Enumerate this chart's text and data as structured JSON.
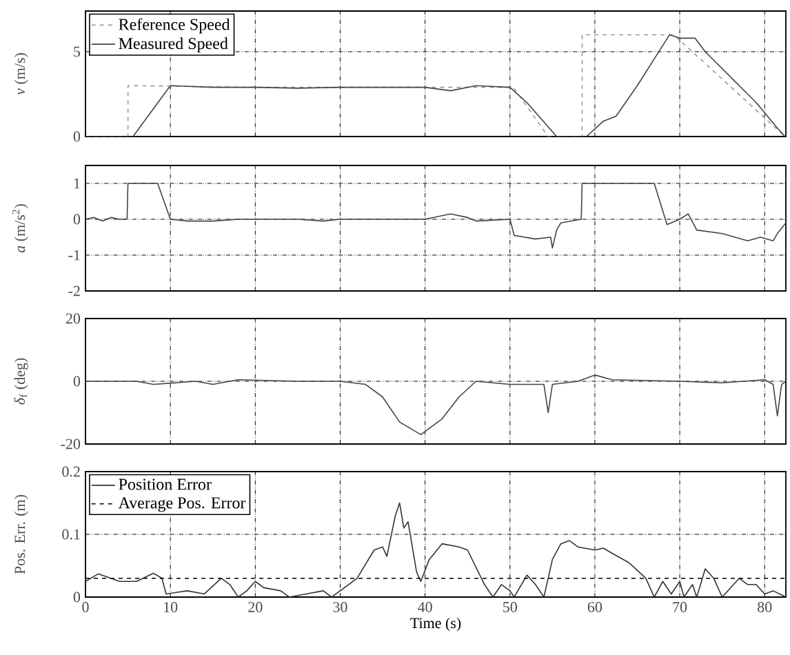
{
  "chart_data": [
    {
      "type": "line",
      "ylabel": "*v* (m/s)",
      "xlim": [
        0,
        82.5
      ],
      "xticks": [
        0,
        10,
        20,
        30,
        40,
        50,
        60,
        70,
        80
      ],
      "ylim": [
        0,
        7.4
      ],
      "yticks": [
        0,
        5
      ],
      "grid": true,
      "legend": "top left",
      "tick_labels": "y",
      "series": [
        {
          "name": "Reference Speed",
          "color": "#999999",
          "line_style": "dashed",
          "x": [
            0,
            5,
            5.01,
            20,
            35,
            50.4,
            54.5,
            58.5,
            58.51,
            69.3,
            82.4
          ],
          "values": [
            0,
            0,
            3,
            2.9,
            2.9,
            2.9,
            0,
            0,
            6,
            6,
            0
          ]
        },
        {
          "name": "Measured Speed",
          "color": "#444444",
          "line_style": "solid",
          "x": [
            0,
            5.6,
            10,
            15,
            20,
            25,
            30,
            35,
            40,
            43,
            46,
            50,
            52,
            55.5,
            59,
            61,
            62.5,
            65,
            68.8,
            70,
            71.8,
            73,
            76,
            79,
            81.5,
            82.4
          ],
          "values": [
            0,
            0,
            3,
            2.9,
            2.9,
            2.85,
            2.9,
            2.9,
            2.9,
            2.7,
            3,
            2.9,
            2,
            0,
            0,
            0.9,
            1.2,
            3,
            6,
            5.8,
            5.8,
            5,
            3.5,
            2,
            0.5,
            0
          ]
        }
      ]
    },
    {
      "type": "line",
      "ylabel": "*a* (m/s$^{2}$)",
      "xlim": [
        0,
        82.5
      ],
      "xticks": [
        0,
        10,
        20,
        30,
        40,
        50,
        60,
        70,
        80
      ],
      "ylim": [
        -2,
        1.5
      ],
      "yticks": [
        -2,
        -1,
        0,
        1
      ],
      "grid": true,
      "tick_labels": "y",
      "series": [
        {
          "color": "#444444",
          "line_style": "solid",
          "x": [
            0,
            1,
            2,
            3,
            4,
            4.9,
            5,
            8.5,
            10,
            12,
            15,
            18,
            20,
            25,
            28,
            30,
            35,
            40,
            43,
            45,
            46,
            50,
            50.5,
            53,
            54.8,
            55,
            55.5,
            56,
            58.4,
            58.5,
            67,
            68.5,
            70,
            71,
            72,
            75,
            78,
            79.5,
            81,
            81.5,
            82.5
          ],
          "values": [
            0,
            0.05,
            -0.05,
            0.05,
            0,
            0,
            1,
            1,
            0,
            -0.05,
            -0.05,
            0,
            0,
            0,
            -0.05,
            0,
            0,
            0,
            0.15,
            0.05,
            -0.05,
            0,
            -0.45,
            -0.55,
            -0.5,
            -0.8,
            -0.3,
            -0.1,
            0,
            1,
            1,
            -0.15,
            0,
            0.15,
            -0.3,
            -0.4,
            -0.6,
            -0.5,
            -0.6,
            -0.4,
            -0.1
          ]
        }
      ]
    },
    {
      "type": "line",
      "ylabel": "*δ*$_{f}$ (deg)",
      "xlim": [
        0,
        82.5
      ],
      "xticks": [
        0,
        10,
        20,
        30,
        40,
        50,
        60,
        70,
        80
      ],
      "ylim": [
        -20,
        20
      ],
      "yticks": [
        -20,
        0,
        20
      ],
      "grid": true,
      "tick_labels": "y",
      "series": [
        {
          "color": "#444444",
          "line_style": "solid",
          "x": [
            0,
            6,
            8,
            13,
            15,
            18,
            25,
            30,
            33,
            35,
            37,
            39.5,
            42,
            44,
            46,
            50,
            54,
            54.5,
            55,
            58,
            60,
            62,
            70,
            75,
            80,
            81,
            81.5,
            82,
            82.5
          ],
          "values": [
            0,
            0,
            -1,
            0,
            -1,
            0.5,
            0,
            0,
            -1,
            -5,
            -13,
            -17,
            -12,
            -5,
            0,
            -1,
            -1,
            -10,
            -1,
            0,
            2,
            0.5,
            0,
            -0.5,
            0.5,
            -1,
            -11,
            -1,
            0
          ]
        }
      ]
    },
    {
      "type": "line",
      "xlabel": "Time (s)",
      "ylabel": "Pos. Err. (m)",
      "xlim": [
        0,
        82.5
      ],
      "xticks": [
        0,
        10,
        20,
        30,
        40,
        50,
        60,
        70,
        80
      ],
      "ylim": [
        0,
        0.2
      ],
      "yticks": [
        0,
        0.1,
        0.2
      ],
      "grid": true,
      "legend": "top left",
      "series": [
        {
          "name": "Position Error",
          "color": "#333333",
          "line_style": "solid",
          "x": [
            0,
            1.5,
            3,
            4,
            6,
            8,
            9,
            9.5,
            12,
            14,
            16,
            17,
            18,
            19,
            20,
            21,
            23,
            24,
            26,
            28,
            29,
            30,
            32,
            34,
            35,
            35.5,
            36.5,
            37,
            37.5,
            38,
            39,
            39.5,
            40.5,
            42,
            44,
            45,
            47,
            48,
            49,
            50,
            50.5,
            52,
            53,
            54,
            55,
            56,
            57,
            58,
            60,
            61,
            62,
            64,
            66,
            67,
            68,
            69,
            70,
            70.5,
            71.5,
            72,
            73,
            74,
            75,
            77,
            78,
            79,
            80,
            81,
            82.5
          ],
          "values": [
            0.025,
            0.037,
            0.03,
            0.025,
            0.025,
            0.038,
            0.03,
            0.005,
            0.01,
            0.005,
            0.03,
            0.02,
            0,
            0.01,
            0.025,
            0.015,
            0.01,
            0,
            0.005,
            0.01,
            0,
            0.01,
            0.03,
            0.075,
            0.08,
            0.065,
            0.13,
            0.15,
            0.11,
            0.12,
            0.04,
            0.025,
            0.06,
            0.085,
            0.08,
            0.075,
            0.02,
            0,
            0.02,
            0.01,
            0,
            0.035,
            0.02,
            0,
            0.06,
            0.085,
            0.09,
            0.08,
            0.075,
            0.078,
            0.07,
            0.055,
            0.03,
            0,
            0.025,
            0.005,
            0.025,
            0,
            0.02,
            0,
            0.045,
            0.03,
            0,
            0.03,
            0.02,
            0.02,
            0.005,
            0.01,
            0
          ]
        },
        {
          "name": "Average Pos. Error",
          "color": "#000000",
          "line_style": "dashed",
          "x": [
            0,
            82.5
          ],
          "values": [
            0.03,
            0.03
          ]
        }
      ]
    }
  ]
}
